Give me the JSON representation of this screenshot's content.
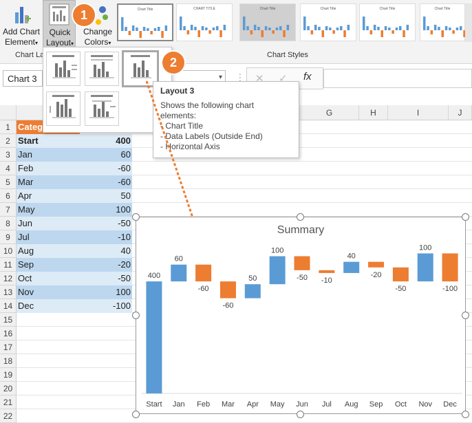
{
  "ribbon": {
    "add_chart_element": {
      "line1": "Add Chart",
      "line2": "Element"
    },
    "quick_layout": {
      "line1": "Quick",
      "line2": "Layout"
    },
    "change_colors": {
      "line1": "Change",
      "line2": "Colors"
    },
    "group_chart_layouts": "Chart La",
    "group_chart_styles": "Chart Styles",
    "style_thumbs": [
      {
        "label": "Chart Title",
        "variant": "selected"
      },
      {
        "label": "CHART TITLE",
        "variant": "plain"
      },
      {
        "label": "Chart Title",
        "variant": "dark"
      },
      {
        "label": "Chart Title",
        "variant": "plain"
      },
      {
        "label": "Chart Title",
        "variant": "plain"
      },
      {
        "label": "Chart Title",
        "variant": "plain"
      }
    ]
  },
  "formula_bar": {
    "name_box": "Chart 3",
    "fx": "fx"
  },
  "columns": [
    "G",
    "H",
    "I",
    "J"
  ],
  "sheet": {
    "header": {
      "a": "Categ"
    },
    "rows": [
      {
        "num": "1"
      },
      {
        "num": "2",
        "a": "Start",
        "b": "400",
        "bold": true
      },
      {
        "num": "3",
        "a": "Jan",
        "b": "60"
      },
      {
        "num": "4",
        "a": "Feb",
        "b": "-60"
      },
      {
        "num": "5",
        "a": "Mar",
        "b": "-60"
      },
      {
        "num": "6",
        "a": "Apr",
        "b": "50"
      },
      {
        "num": "7",
        "a": "May",
        "b": "100"
      },
      {
        "num": "8",
        "a": "Jun",
        "b": "-50"
      },
      {
        "num": "9",
        "a": "Jul",
        "b": "-10"
      },
      {
        "num": "10",
        "a": "Aug",
        "b": "40"
      },
      {
        "num": "11",
        "a": "Sep",
        "b": "-20"
      },
      {
        "num": "12",
        "a": "Oct",
        "b": "-50"
      },
      {
        "num": "13",
        "a": "Nov",
        "b": "100"
      },
      {
        "num": "14",
        "a": "Dec",
        "b": "-100"
      },
      {
        "num": "15"
      },
      {
        "num": "16"
      },
      {
        "num": "17"
      },
      {
        "num": "18"
      },
      {
        "num": "19"
      },
      {
        "num": "20"
      },
      {
        "num": "21"
      },
      {
        "num": "22"
      }
    ]
  },
  "callouts": [
    "1",
    "2"
  ],
  "tooltip": {
    "title": "Layout 3",
    "lines": [
      "Shows the following chart",
      "elements:",
      "- Chart Title",
      "- Data Labels (Outside End)",
      "- Horizontal Axis"
    ]
  },
  "colors": {
    "blue": "#5b9bd5",
    "orange": "#ed7d31",
    "header_orange": "#ed7d31",
    "row_dark": "#bdd7ee",
    "row_light": "#ddebf7"
  },
  "chart_data": {
    "type": "bar",
    "title": "Summary",
    "categories": [
      "Start",
      "Jan",
      "Feb",
      "Mar",
      "Apr",
      "May",
      "Jun",
      "Jul",
      "Aug",
      "Sep",
      "Oct",
      "Nov",
      "Dec"
    ],
    "values": [
      400,
      60,
      -60,
      -60,
      50,
      100,
      -50,
      -10,
      40,
      -20,
      -50,
      100,
      -100
    ],
    "labels": [
      "400",
      "60",
      "-60",
      "-60",
      "50",
      "100",
      "-50",
      "-10",
      "40",
      "-20",
      "-50",
      "100",
      "-100"
    ],
    "waterfall": true,
    "ylim": [
      0,
      560
    ],
    "grid": false,
    "legend": "none"
  }
}
